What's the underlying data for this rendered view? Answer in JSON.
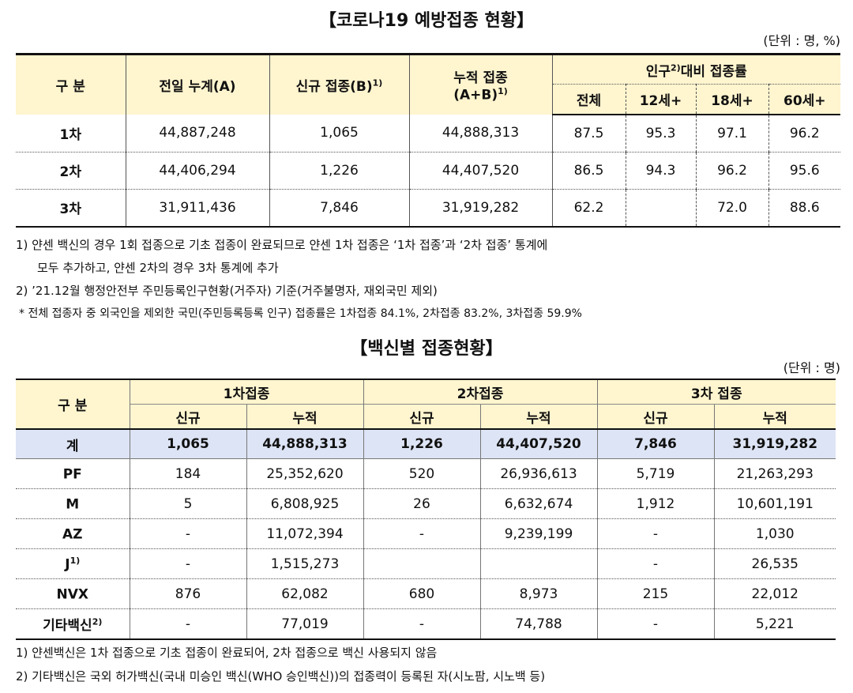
{
  "title1": "【코로나19 예방접종 현황】",
  "unit1": "(단위 : 명, %)",
  "t1": {
    "h_category": "구 분",
    "h_prev": "전일 누계(A)",
    "h_new": "신규 접종(B)",
    "h_new_sup": "1)",
    "h_cum": "누적 접종",
    "h_cum2": "(A+B)",
    "h_cum_sup": "1)",
    "h_rate_pre": "인구",
    "h_rate_sup": "2)",
    "h_rate_post": "대비 접종률",
    "h_all": "전체",
    "h_12": "12세+",
    "h_18": "18세+",
    "h_60": "60세+",
    "rows": [
      {
        "label": "1차",
        "prev": "44,887,248",
        "new": "1,065",
        "cum": "44,888,313",
        "all": "87.5",
        "r12": "95.3",
        "r18": "97.1",
        "r60": "96.2"
      },
      {
        "label": "2차",
        "prev": "44,406,294",
        "new": "1,226",
        "cum": "44,407,520",
        "all": "86.5",
        "r12": "94.3",
        "r18": "96.2",
        "r60": "95.6"
      },
      {
        "label": "3차",
        "prev": "31,911,436",
        "new": "7,846",
        "cum": "31,919,282",
        "all": "62.2",
        "r12": "",
        "r18": "72.0",
        "r60": "88.6"
      }
    ]
  },
  "notes1": [
    "1) 얀센 백신의 경우 1회 접종으로 기초 접종이 완료되므로 얀센 1차 접종은 ‘1차 접종’과 ‘2차 접종’ 통계에",
    "모두 추가하고, 얀센 2차의 경우 3차 통계에 추가",
    "2) ’21.12월 행정안전부 주민등록인구현황(거주자) 기준(거주불명자, 재외국민 제외)",
    "* 전체 접종자 중 외국인을 제외한 국민(주민등록등록 인구) 접종률은 1차접종 84.1%, 2차접종 83.2%, 3차접종 59.9%"
  ],
  "title2": "【백신별 접종현황】",
  "unit2": "(단위 : 명)",
  "t2": {
    "h_category": "구 분",
    "h_dose1": "1차접종",
    "h_dose2": "2차접종",
    "h_dose3": "3차 접종",
    "h_new": "신규",
    "h_cum": "누적",
    "total": {
      "label": "계",
      "d1n": "1,065",
      "d1c": "44,888,313",
      "d2n": "1,226",
      "d2c": "44,407,520",
      "d3n": "7,846",
      "d3c": "31,919,282"
    },
    "rows": [
      {
        "label": "PF",
        "sup": "",
        "d1n": "184",
        "d1c": "25,352,620",
        "d2n": "520",
        "d2c": "26,936,613",
        "d3n": "5,719",
        "d3c": "21,263,293"
      },
      {
        "label": "M",
        "sup": "",
        "d1n": "5",
        "d1c": "6,808,925",
        "d2n": "26",
        "d2c": "6,632,674",
        "d3n": "1,912",
        "d3c": "10,601,191"
      },
      {
        "label": "AZ",
        "sup": "",
        "d1n": "-",
        "d1c": "11,072,394",
        "d2n": "-",
        "d2c": "9,239,199",
        "d3n": "-",
        "d3c": "1,030"
      },
      {
        "label": "J",
        "sup": "1)",
        "d1n": "-",
        "d1c": "1,515,273",
        "d2n": "",
        "d2c": "",
        "d3n": "-",
        "d3c": "26,535"
      },
      {
        "label": "NVX",
        "sup": "",
        "d1n": "876",
        "d1c": "62,082",
        "d2n": "680",
        "d2c": "8,973",
        "d3n": "215",
        "d3c": "22,012"
      },
      {
        "label": "기타백신",
        "sup": "2)",
        "d1n": "-",
        "d1c": "77,019",
        "d2n": "-",
        "d2c": "74,788",
        "d3n": "-",
        "d3c": "5,221"
      }
    ]
  },
  "notes2": [
    "1) 얀센백신은 1차 접종으로 기초 접종이 완료되어, 2차 접종으로 백신 사용되지 않음",
    "2) 기타백신은 국외 허가백신(국내 미승인 백신(WHO 승인백신))의 접종력이 등록된 자(시노팜, 시노백 등)"
  ]
}
